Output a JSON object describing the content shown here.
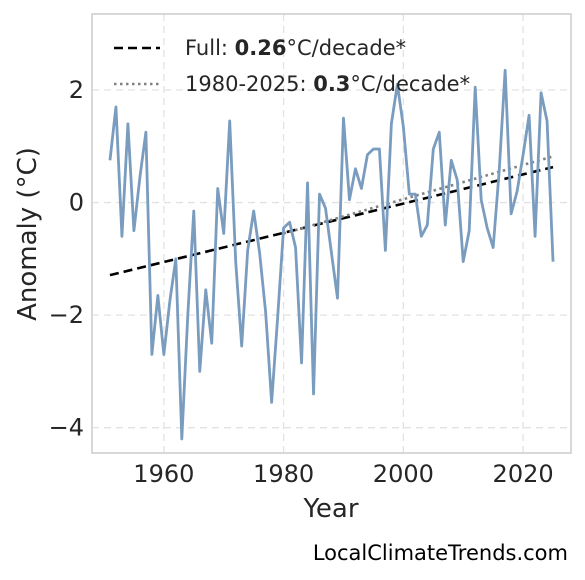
{
  "chart_data": {
    "type": "line",
    "xlabel": "Year",
    "ylabel": "Anomaly (°C)",
    "xlim": [
      1948,
      2028
    ],
    "ylim": [
      -4.45,
      3.35
    ],
    "x_ticks": [
      1960,
      1980,
      2000,
      2020
    ],
    "y_ticks": [
      -4,
      -2,
      0,
      2
    ],
    "grid": true,
    "legend_placement": "top-left",
    "series": [
      {
        "color": "#7a9cbf",
        "x": [
          1951,
          1952,
          1953,
          1954,
          1955,
          1956,
          1957,
          1958,
          1959,
          1960,
          1961,
          1962,
          1963,
          1964,
          1965,
          1966,
          1967,
          1968,
          1969,
          1970,
          1971,
          1972,
          1973,
          1974,
          1975,
          1976,
          1977,
          1978,
          1979,
          1980,
          1981,
          1982,
          1983,
          1984,
          1985,
          1986,
          1987,
          1988,
          1989,
          1990,
          1991,
          1992,
          1993,
          1994,
          1995,
          1996,
          1997,
          1998,
          1999,
          2000,
          2001,
          2002,
          2003,
          2004,
          2005,
          2006,
          2007,
          2008,
          2009,
          2010,
          2011,
          2012,
          2013,
          2014,
          2015,
          2016,
          2017,
          2018,
          2019,
          2020,
          2021,
          2022,
          2023,
          2024,
          2025
        ],
        "values": [
          0.75,
          1.7,
          -0.6,
          1.4,
          -0.5,
          0.45,
          1.25,
          -2.7,
          -1.65,
          -2.7,
          -1.75,
          -1.0,
          -4.2,
          -2.0,
          -0.15,
          -3.0,
          -1.55,
          -2.5,
          0.25,
          -0.55,
          1.45,
          -1.05,
          -2.55,
          -0.85,
          -0.15,
          -0.9,
          -1.95,
          -3.55,
          -2.05,
          -0.45,
          -0.35,
          -0.8,
          -2.85,
          0.35,
          -3.4,
          0.15,
          -0.1,
          -0.9,
          -1.7,
          1.5,
          0.05,
          0.6,
          0.25,
          0.85,
          0.95,
          0.95,
          -0.85,
          1.4,
          2.1,
          1.35,
          0.15,
          0.15,
          -0.6,
          -0.4,
          0.95,
          1.25,
          -0.4,
          0.75,
          0.4,
          -1.05,
          -0.5,
          2.05,
          0.05,
          -0.45,
          -0.8,
          0.55,
          2.35,
          -0.2,
          0.2,
          0.85,
          1.55,
          -0.6,
          1.95,
          1.45,
          -1.05
        ]
      }
    ],
    "trend_lines": [
      {
        "style": "dashed",
        "color": "#000000",
        "x": [
          1951,
          2025
        ],
        "values": [
          -1.29,
          0.63
        ]
      },
      {
        "style": "dotted",
        "color": "#808080",
        "x": [
          1980,
          2025
        ],
        "values": [
          -0.55,
          0.82
        ]
      }
    ],
    "legend": [
      {
        "style": "dashed",
        "color": "#000000",
        "prefix": "Full: ",
        "value": "0.26",
        "suffix": "°C/decade*"
      },
      {
        "style": "dotted",
        "color": "#808080",
        "prefix": "1980-2025: ",
        "value": "0.3",
        "suffix": "°C/decade*"
      }
    ]
  },
  "watermark": "LocalClimateTrends.com"
}
